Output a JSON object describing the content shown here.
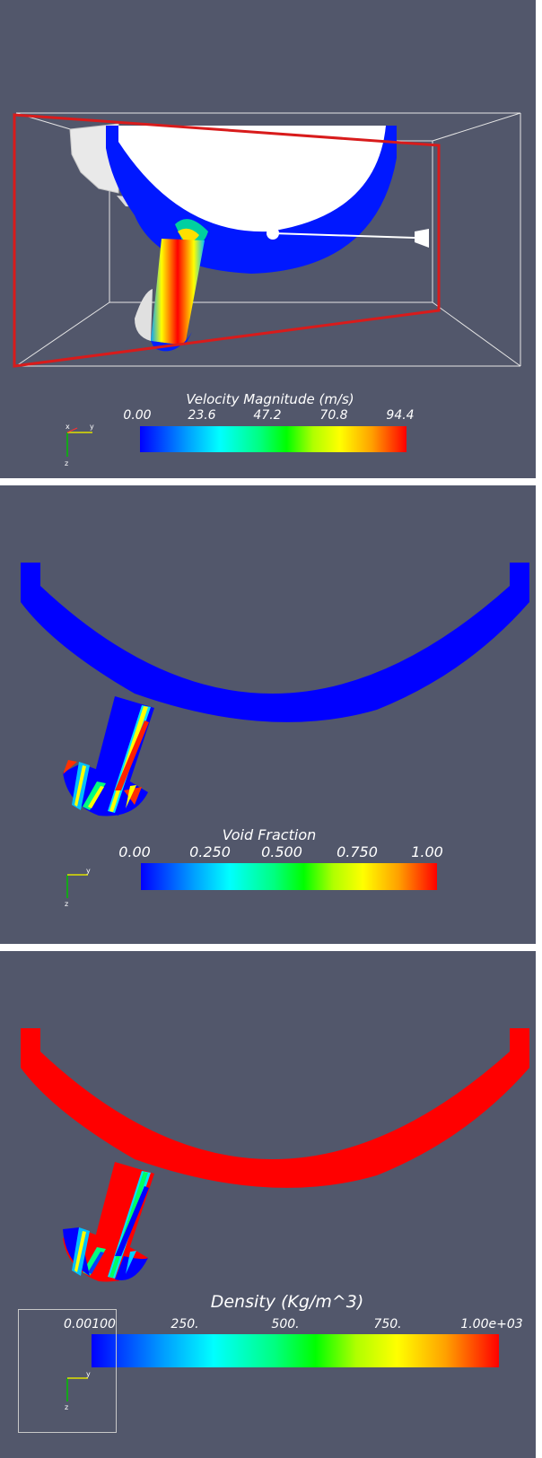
{
  "panels": [
    {
      "id": "velocity",
      "colorbar": {
        "title": "Velocity Magnitude (m/s)",
        "ticks": [
          "0.00",
          "23.6",
          "47.2",
          "70.8",
          "94.4"
        ]
      },
      "axes": {
        "x": "x",
        "y": "y",
        "z": "z"
      }
    },
    {
      "id": "void-fraction",
      "colorbar": {
        "title": "Void Fraction",
        "ticks": [
          "0.00",
          "0.250",
          "0.500",
          "0.750",
          "1.00"
        ]
      },
      "axes": {
        "x": "",
        "y": "y",
        "z": "z"
      }
    },
    {
      "id": "density",
      "colorbar": {
        "title": "Density (Kg/m^3)",
        "ticks": [
          "0.00100",
          "250.",
          "500.",
          "750.",
          "1.00e+03"
        ]
      },
      "axes": {
        "x": "",
        "y": "y",
        "z": "z"
      }
    }
  ],
  "colors": {
    "background": "#52576b",
    "outline": "#ffffff",
    "slice_plane": "#d81b1b",
    "low": "#0000ff",
    "high": "#ff0000",
    "solid": "#f2f2f2"
  }
}
